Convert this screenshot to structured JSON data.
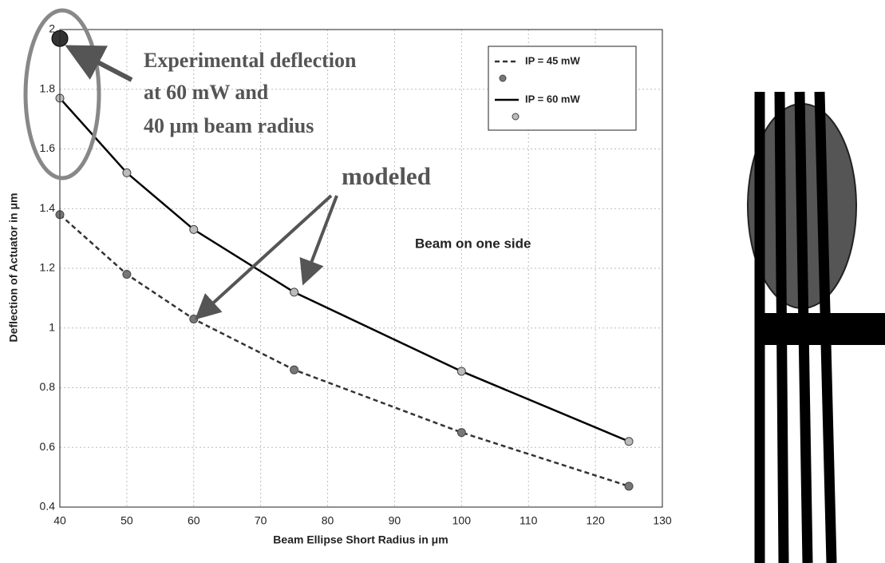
{
  "chart_data": {
    "type": "line",
    "x_label": "Beam Ellipse Short Radius in μm",
    "y_label": "Deflection of Actuator in μm",
    "x": [
      40,
      50,
      60,
      75,
      100,
      125
    ],
    "series": [
      {
        "name": "IP = 45 mW",
        "color": "#333333",
        "dash": true,
        "marker_color": "#777777",
        "values": [
          1.38,
          1.18,
          1.03,
          0.86,
          0.65,
          0.47
        ]
      },
      {
        "name": "IP = 60 mW",
        "color": "#000000",
        "dash": false,
        "marker_color": "#bbbbbb",
        "values": [
          1.77,
          1.52,
          1.33,
          1.12,
          0.855,
          0.62
        ]
      }
    ],
    "experimental": {
      "x": 40,
      "y": 1.97,
      "color": "#333333"
    },
    "xlim": [
      40,
      130
    ],
    "xticks": [
      40,
      50,
      60,
      70,
      80,
      90,
      100,
      110,
      120,
      130
    ],
    "ylim": [
      0.4,
      2
    ],
    "yticks": [
      0.4,
      0.6,
      0.8,
      1,
      1.2,
      1.4,
      1.6,
      1.8,
      2
    ],
    "grid": true,
    "annotations": [
      "Experimental deflection",
      "at 60 mW and",
      "40 μm beam radius",
      "modeled",
      "Beam on one side"
    ]
  }
}
